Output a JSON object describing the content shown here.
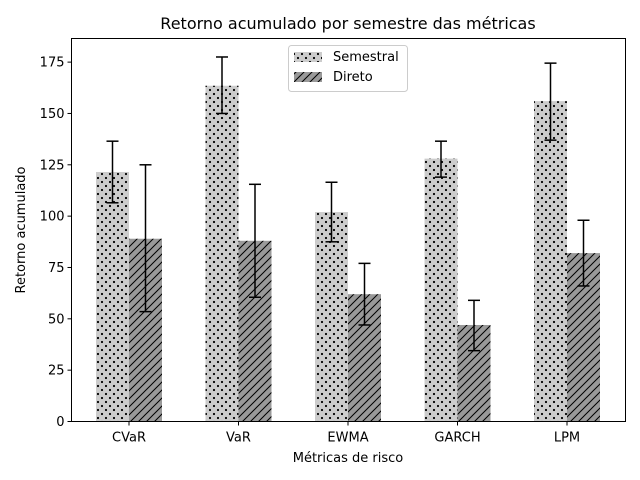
{
  "chart_data": {
    "type": "bar",
    "title": "Retorno acumulado por semestre das métricas",
    "xlabel": "Métricas de risco",
    "ylabel": "Retorno acumulado",
    "categories": [
      "CVaR",
      "VaR",
      "EWMA",
      "GARCH",
      "LPM"
    ],
    "ylim": [
      0,
      186.5
    ],
    "yticks": [
      0,
      25,
      50,
      75,
      100,
      125,
      150,
      175
    ],
    "grid": false,
    "legend_position": "top-center",
    "series": [
      {
        "name": "Semestral",
        "values": [
          121.5,
          163.5,
          102,
          128,
          156
        ],
        "err_low": [
          106.5,
          150,
          87.5,
          119,
          137
        ],
        "err_high": [
          136.5,
          177.5,
          116.5,
          136.5,
          174.5
        ],
        "color": "#cccccc",
        "pattern": "dots"
      },
      {
        "name": "Direto",
        "values": [
          89,
          88,
          62,
          47,
          82
        ],
        "err_low": [
          53.5,
          60.5,
          47,
          34.5,
          66
        ],
        "err_high": [
          125,
          115.5,
          77,
          59,
          98
        ],
        "color": "#999999",
        "pattern": "hatch"
      }
    ]
  }
}
